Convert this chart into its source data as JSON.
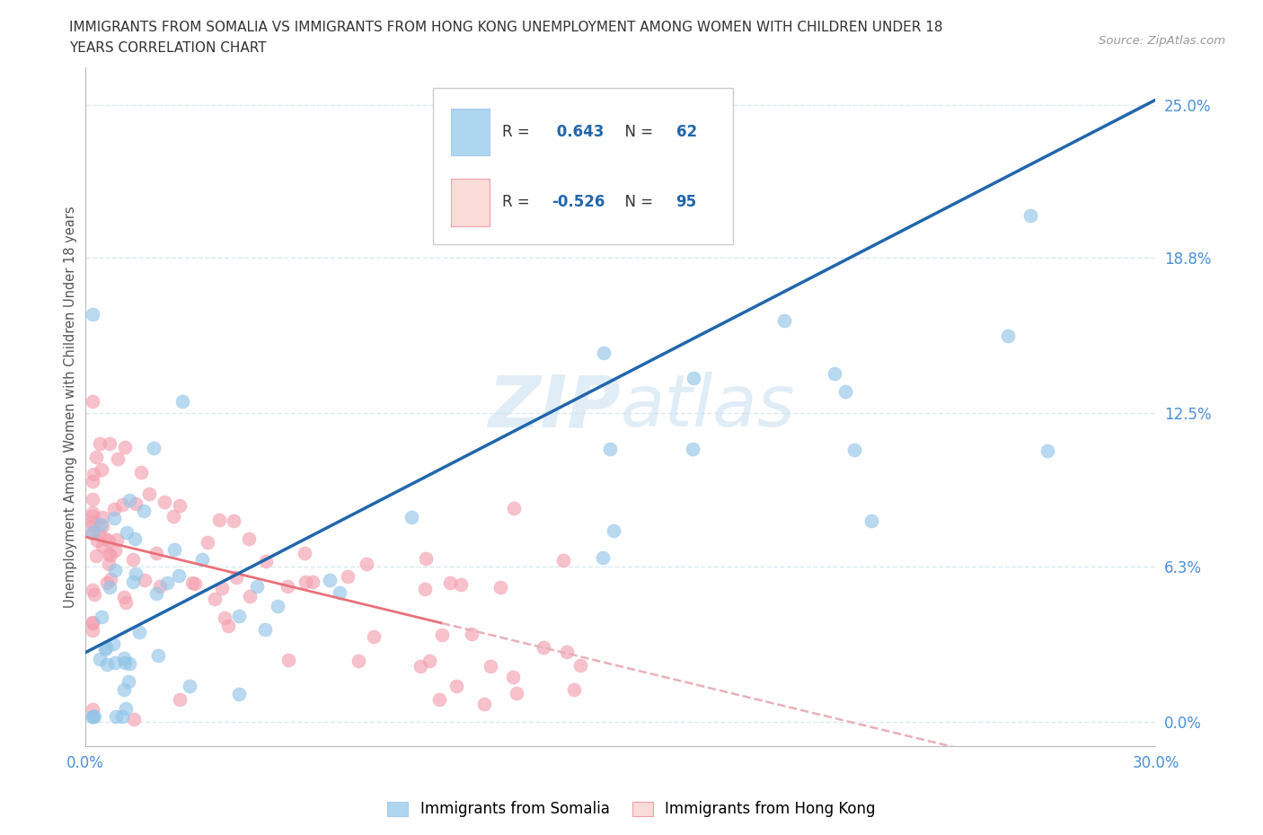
{
  "title_line1": "IMMIGRANTS FROM SOMALIA VS IMMIGRANTS FROM HONG KONG UNEMPLOYMENT AMONG WOMEN WITH CHILDREN UNDER 18",
  "title_line2": "YEARS CORRELATION CHART",
  "source": "Source: ZipAtlas.com",
  "ylabel": "Unemployment Among Women with Children Under 18 years",
  "xlim": [
    0.0,
    0.3
  ],
  "ylim": [
    -0.01,
    0.265
  ],
  "xtick_positions": [
    0.0,
    0.05,
    0.1,
    0.15,
    0.2,
    0.25,
    0.3
  ],
  "xtick_labels": [
    "0.0%",
    "",
    "",
    "",
    "",
    "",
    "30.0%"
  ],
  "ytick_vals_right": [
    0.25,
    0.188,
    0.125,
    0.063,
    0.0
  ],
  "ytick_labels_right": [
    "25.0%",
    "18.8%",
    "12.5%",
    "6.3%",
    "0.0%"
  ],
  "R_somalia": 0.643,
  "N_somalia": 62,
  "R_hk": -0.526,
  "N_hk": 95,
  "somalia_color": "#92C5E8",
  "hk_color": "#F4A0B0",
  "somalia_line_color": "#2166AC",
  "hk_line_color": "#E8707A",
  "hk_line_dash_color": "#E8B0B8",
  "background_color": "#FFFFFF",
  "watermark_color": "#D6EAF8",
  "grid_color": "#D8E8F0",
  "legend_somalia_color": "#AED6F1",
  "legend_hk_color": "#FADBD8"
}
